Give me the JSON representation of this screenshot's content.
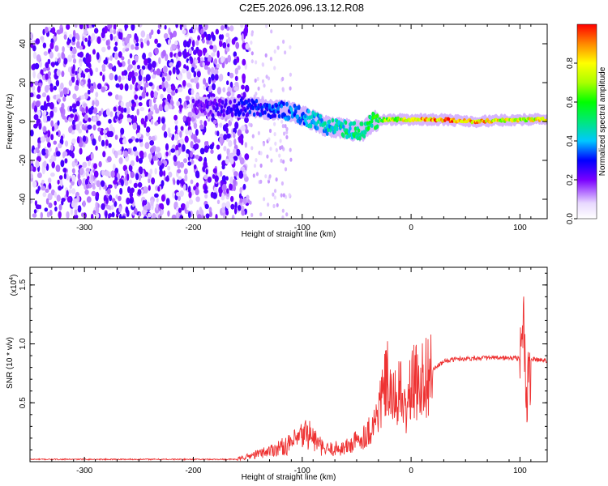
{
  "title": "C2E5.2026.096.13.12.R08",
  "chart_data": [
    {
      "type": "heatmap",
      "xlabel": "Height of straight line (km)",
      "ylabel": "Frequency (Hz)",
      "xlim": [
        -350,
        125
      ],
      "ylim": [
        -50,
        50
      ],
      "x_ticks": [
        -300,
        -200,
        -100,
        0,
        100
      ],
      "y_ticks": [
        -40,
        -20,
        0,
        20,
        40
      ],
      "colorbar": {
        "label": "Normalized spectral amplitude",
        "range": [
          0,
          1
        ],
        "ticks": [
          0.0,
          0.2,
          0.4,
          0.6,
          0.8
        ]
      },
      "features": [
        {
          "name": "noise",
          "x": [
            -350,
            -150
          ],
          "y_range": [
            -50,
            50
          ],
          "amplitude": 0.12
        },
        {
          "name": "ridge",
          "x": [
            -200,
            -150,
            -120,
            -100,
            -80,
            -60,
            -45,
            -35,
            -25,
            -10,
            0,
            25,
            60,
            100,
            125
          ],
          "y": [
            7,
            7,
            6,
            3,
            -2,
            -4,
            -5,
            0,
            1,
            1,
            1,
            1,
            0,
            1,
            1
          ],
          "amplitude": [
            0.2,
            0.3,
            0.35,
            0.4,
            0.45,
            0.5,
            0.55,
            0.6,
            0.7,
            0.8,
            0.9,
            0.95,
            0.9,
            0.8,
            0.8
          ]
        }
      ]
    },
    {
      "type": "line",
      "xlabel": "Height of straight line (km)",
      "ylabel": "SNR (10 * v/v)",
      "exponent_label": "(x10",
      "exponent_power": "4",
      "exponent_close": ")",
      "xlim": [
        -350,
        125
      ],
      "ylim": [
        0,
        1.65
      ],
      "x_ticks": [
        -300,
        -200,
        -100,
        0,
        100
      ],
      "y_ticks": [
        0.5,
        1.0,
        1.5
      ],
      "y_tick_labels": [
        "0.5",
        "1.0",
        "1.5"
      ],
      "color": "#ee3333",
      "series": [
        {
          "x": [
            -350,
            -250,
            -160,
            -135,
            -110,
            -95,
            -80,
            -60,
            -45,
            -35,
            -28,
            -22,
            -18,
            -10,
            -5,
            0,
            10,
            20,
            30,
            40,
            60,
            80,
            100,
            103,
            106,
            110,
            125
          ],
          "y": [
            0.02,
            0.02,
            0.02,
            0.08,
            0.15,
            0.25,
            0.1,
            0.12,
            0.2,
            0.3,
            0.5,
            0.7,
            0.5,
            0.6,
            0.4,
            0.65,
            0.7,
            0.78,
            0.85,
            0.87,
            0.88,
            0.88,
            0.88,
            1.3,
            0.45,
            0.87,
            0.86
          ]
        }
      ]
    }
  ]
}
